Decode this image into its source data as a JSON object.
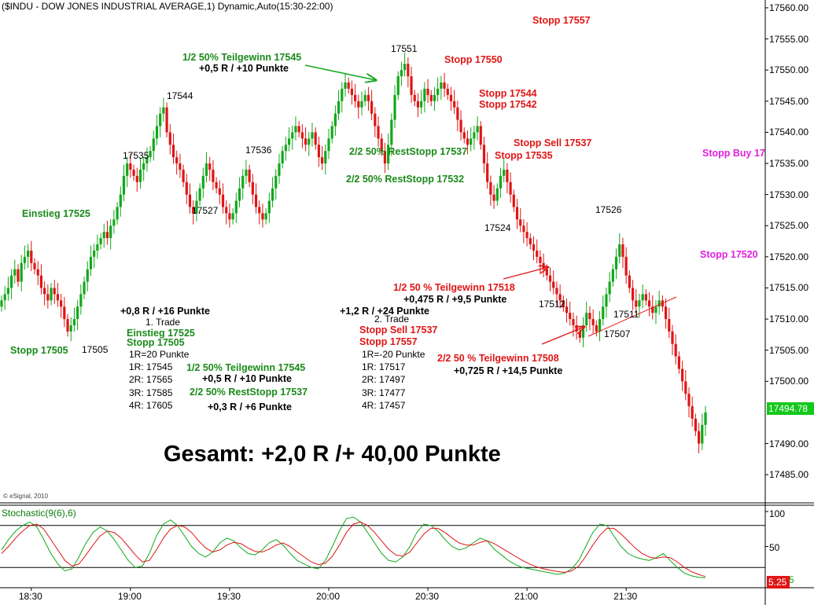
{
  "header": {
    "title": "($INDU - DOW JONES INDUSTRIAL AVERAGE,1) Dynamic,Auto(15:30-22:00)",
    "credit": "© eSignal, 2010"
  },
  "price_axis": {
    "labels": [
      "17560.00",
      "17555.00",
      "17550.00",
      "17545.00",
      "17540.00",
      "17535.00",
      "17530.00",
      "17525.00",
      "17520.00",
      "17515.00",
      "17510.00",
      "17505.00",
      "17500.00",
      "17494.78",
      "17490.00",
      "17485.00"
    ],
    "last_price": "17494.78"
  },
  "time_axis": {
    "labels": [
      "18:30",
      "19:00",
      "19:30",
      "20:00",
      "20:30",
      "21:00",
      "21:30"
    ]
  },
  "stochastic": {
    "title": "Stochastic(9(6),6)",
    "axis_labels": [
      "100",
      "50"
    ],
    "value": "5.25",
    "value2": "5"
  },
  "annotations": {
    "stopp_17557_top": "Stopp 17557",
    "teilgewinn_1": "1/2 50% Teilgewinn 17545",
    "teilgewinn_1_result": "+0,5 R / +10 Punkte",
    "high_17551": "17551",
    "stopp_17550": "Stopp 17550",
    "stopp_17544": "Stopp 17544",
    "stopp_17542": "Stopp 17542",
    "high_17544": "17544",
    "stopp_sell_17537": "Stopp Sell 17537",
    "stopp_17535": "Stopp 17535",
    "stopp_buy": "Stopp Buy 17",
    "lbl_17535": "17535",
    "lbl_17536": "17536",
    "reststopp_17537": "2/2 50% RestStopp 17537",
    "reststopp_17532": "2/2 50% RestStopp 17532",
    "lbl_17527": "17527",
    "einstieg": "Einstieg 17525",
    "lbl_17524": "17524",
    "lbl_17526": "17526",
    "stopp_17520": "Stopp 17520",
    "teilgewinn_17518": "1/2 50 % Teilgewinn 17518",
    "teilgewinn_17518_result": "+0,475 R / +9,5 Punkte",
    "lbl_17512": "17512",
    "lbl_17511": "17511",
    "lbl_17507": "17507",
    "teilgewinn_17508": "2/2 50 % Teilgewinn 17508",
    "teilgewinn_17508_result": "+0,725 R / +14,5 Punkte",
    "stopp_17505_low": "Stopp 17505",
    "lbl_17505": "17505"
  },
  "trade1": {
    "result": "+0,8 R / +16 Punkte",
    "name": "1. Trade",
    "einstieg": "Einstieg 17525",
    "stopp": "Stopp 17505",
    "rule": "1R=20 Punkte",
    "levels": [
      "1R: 17545",
      "2R: 17565",
      "3R: 17585",
      "4R: 17605"
    ],
    "partial1": "1/2 50% Teilgewinn 17545",
    "partial1_result": "+0,5 R / +10 Punkte",
    "partial2": "2/2 50% RestStopp 17537",
    "partial2_result": "+0,3 R / +6 Punkte"
  },
  "trade2": {
    "result": "+1,2 R / +24 Punkte",
    "name": "2. Trade",
    "stopp_sell": "Stopp Sell 17537",
    "stopp": "Stopp 17557",
    "rule": "1R=-20 Punkte",
    "levels": [
      "1R: 17517",
      "2R: 17497",
      "3R: 17477",
      "4R: 17457"
    ]
  },
  "summary": {
    "total": "Gesamt: +2,0 R /+ 40,00 Punkte"
  },
  "colors": {
    "up": "#12a81b",
    "down": "#e01515",
    "axis": "#000000",
    "stoch_k": "#12a81b",
    "stoch_d": "#e01515",
    "magenta": "#e020e0"
  },
  "chart_data": [
    {
      "type": "candlestick",
      "title": "($INDU - DOW JONES INDUSTRIAL AVERAGE,1) Dynamic,Auto(15:30-22:00)",
      "y_range": [
        17483,
        17561
      ],
      "x_ticks": [
        "18:30",
        "19:00",
        "19:30",
        "20:00",
        "20:30",
        "21:00",
        "21:30"
      ],
      "bars_per_hour": 60,
      "start_time": "18:21",
      "closes": [
        17513,
        17514,
        17515,
        17517,
        17518,
        17516,
        17519,
        17520,
        17521,
        17519,
        17518,
        17517,
        17515,
        17514,
        17513,
        17515,
        17514,
        17513,
        17512,
        17510,
        17508,
        17509,
        17510,
        17512,
        17514,
        17516,
        17518,
        17520,
        17521,
        17522,
        17523,
        17524,
        17523,
        17525,
        17526,
        17528,
        17530,
        17533,
        17535,
        17534,
        17533,
        17532,
        17534,
        17535,
        17536,
        17537,
        17539,
        17541,
        17543,
        17544,
        17540,
        17538,
        17536,
        17535,
        17534,
        17532,
        17530,
        17528,
        17527,
        17529,
        17531,
        17533,
        17535,
        17534,
        17532,
        17531,
        17530,
        17528,
        17527,
        17526,
        17527,
        17529,
        17531,
        17533,
        17534,
        17532,
        17530,
        17528,
        17527,
        17526,
        17527,
        17529,
        17531,
        17533,
        17535,
        17537,
        17538,
        17539,
        17540,
        17541,
        17540,
        17539,
        17538,
        17539,
        17540,
        17538,
        17536,
        17535,
        17537,
        17539,
        17541,
        17543,
        17545,
        17547,
        17548,
        17547,
        17546,
        17545,
        17544,
        17545,
        17546,
        17545,
        17543,
        17541,
        17539,
        17537,
        17535,
        17538,
        17542,
        17546,
        17549,
        17550,
        17551,
        17549,
        17546,
        17545,
        17544,
        17545,
        17547,
        17546,
        17545,
        17546,
        17547,
        17548,
        17547,
        17546,
        17545,
        17544,
        17542,
        17540,
        17539,
        17538,
        17539,
        17540,
        17541,
        17538,
        17535,
        17532,
        17530,
        17529,
        17531,
        17533,
        17534,
        17532,
        17530,
        17528,
        17526,
        17525,
        17524,
        17523,
        17522,
        17521,
        17520,
        17519,
        17518,
        17517,
        17516,
        17515,
        17514,
        17513,
        17512,
        17511,
        17510,
        17509,
        17508,
        17507,
        17509,
        17511,
        17510,
        17509,
        17508,
        17510,
        17512,
        17514,
        17516,
        17518,
        17520,
        17522,
        17520,
        17517,
        17515,
        17513,
        17512,
        17513,
        17514,
        17513,
        17512,
        17511,
        17512,
        17513,
        17512,
        17510,
        17508,
        17506,
        17504,
        17502,
        17500,
        17498,
        17496,
        17494,
        17492,
        17490,
        17493,
        17495
      ]
    },
    {
      "type": "line",
      "title": "Stochastic(9(6),6)",
      "y_range": [
        0,
        100
      ],
      "levels": [
        80,
        20
      ],
      "series": [
        {
          "name": "K",
          "values": [
            45,
            60,
            72,
            80,
            85,
            78,
            60,
            40,
            25,
            15,
            18,
            35,
            55,
            70,
            78,
            72,
            60,
            45,
            30,
            20,
            22,
            40,
            65,
            82,
            88,
            80,
            65,
            50,
            40,
            35,
            42,
            55,
            62,
            58,
            48,
            40,
            38,
            45,
            55,
            60,
            52,
            40,
            30,
            25,
            20,
            18,
            30,
            50,
            72,
            90,
            92,
            85,
            70,
            55,
            40,
            30,
            28,
            35,
            50,
            70,
            82,
            80,
            72,
            60,
            50,
            45,
            48,
            55,
            62,
            58,
            46,
            38,
            30,
            24,
            20,
            18,
            16,
            14,
            12,
            10,
            12,
            18,
            30,
            50,
            70,
            82,
            80,
            65,
            50,
            40,
            35,
            32,
            30,
            34,
            40,
            30,
            20,
            12,
            8,
            6,
            5
          ]
        },
        {
          "name": "D",
          "values": [
            40,
            50,
            62,
            72,
            80,
            82,
            75,
            60,
            45,
            30,
            22,
            25,
            38,
            52,
            65,
            72,
            70,
            62,
            50,
            38,
            28,
            30,
            45,
            62,
            75,
            80,
            78,
            70,
            58,
            48,
            42,
            45,
            52,
            56,
            54,
            48,
            43,
            42,
            46,
            52,
            55,
            50,
            42,
            35,
            28,
            24,
            26,
            36,
            52,
            70,
            82,
            85,
            80,
            70,
            58,
            46,
            38,
            36,
            42,
            55,
            68,
            76,
            76,
            70,
            62,
            55,
            52,
            52,
            56,
            58,
            54,
            48,
            42,
            36,
            30,
            25,
            21,
            18,
            16,
            14,
            13,
            15,
            22,
            36,
            52,
            66,
            76,
            76,
            68,
            58,
            48,
            40,
            35,
            33,
            35,
            34,
            28,
            20,
            14,
            10,
            7
          ]
        }
      ]
    }
  ]
}
